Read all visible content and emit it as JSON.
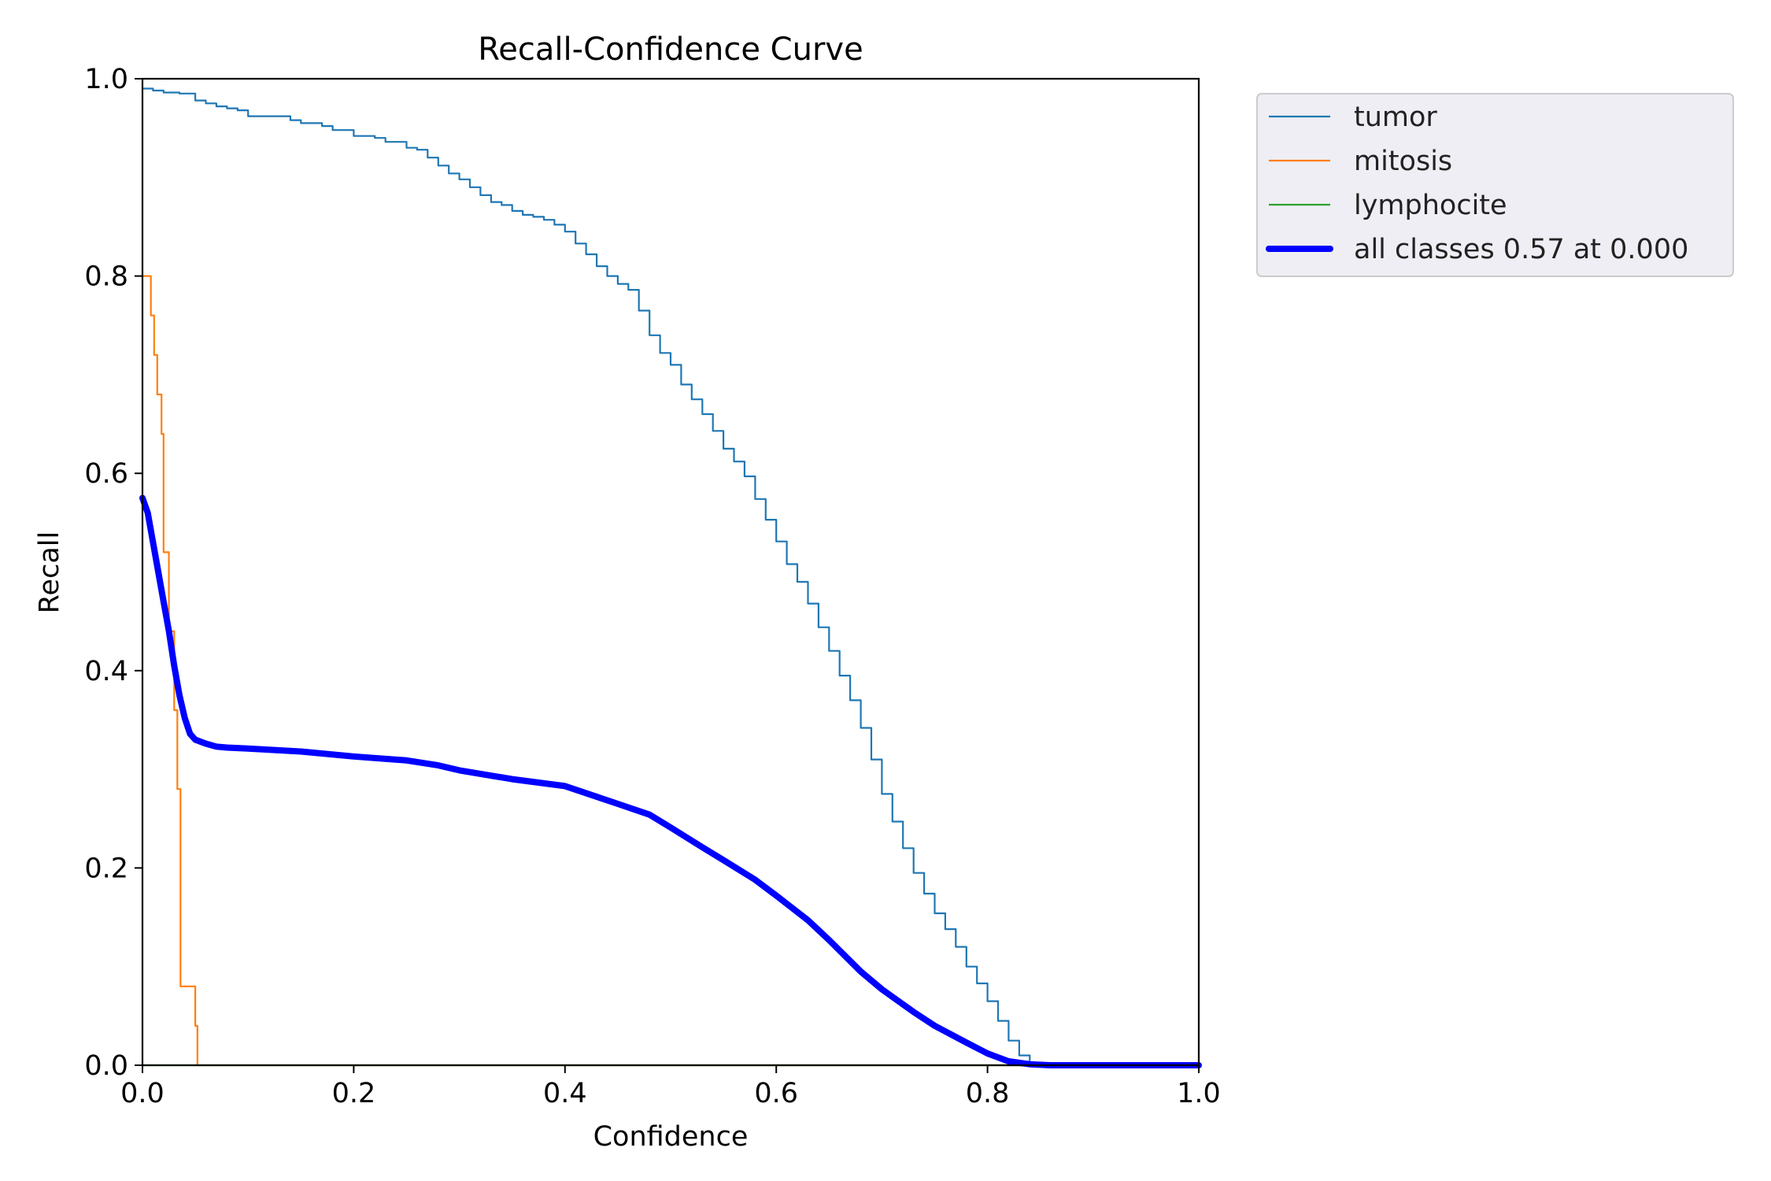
{
  "chart_data": {
    "type": "line",
    "title": "Recall-Confidence Curve",
    "xlabel": "Confidence",
    "ylabel": "Recall",
    "xlim": [
      0,
      1
    ],
    "ylim": [
      0,
      1
    ],
    "xticks": [
      "0.0",
      "0.2",
      "0.4",
      "0.6",
      "0.8",
      "1.0"
    ],
    "yticks": [
      "0.0",
      "0.2",
      "0.4",
      "0.6",
      "0.8",
      "1.0"
    ],
    "grid": false,
    "legend_position": "outside-top-right",
    "series": [
      {
        "name": "tumor",
        "color": "#1f77b4",
        "step": true,
        "x": [
          0.0,
          0.01,
          0.02,
          0.035,
          0.05,
          0.06,
          0.07,
          0.08,
          0.09,
          0.1,
          0.14,
          0.15,
          0.17,
          0.18,
          0.2,
          0.22,
          0.23,
          0.25,
          0.26,
          0.27,
          0.28,
          0.29,
          0.3,
          0.31,
          0.32,
          0.33,
          0.34,
          0.35,
          0.36,
          0.37,
          0.38,
          0.39,
          0.4,
          0.41,
          0.42,
          0.43,
          0.44,
          0.45,
          0.46,
          0.47,
          0.48,
          0.49,
          0.5,
          0.51,
          0.52,
          0.53,
          0.54,
          0.55,
          0.56,
          0.57,
          0.58,
          0.59,
          0.6,
          0.61,
          0.62,
          0.63,
          0.64,
          0.65,
          0.66,
          0.67,
          0.68,
          0.69,
          0.7,
          0.71,
          0.72,
          0.73,
          0.74,
          0.75,
          0.76,
          0.77,
          0.78,
          0.79,
          0.8,
          0.81,
          0.82,
          0.83,
          0.84,
          0.86,
          0.9,
          1.0
        ],
        "y": [
          0.99,
          0.988,
          0.986,
          0.985,
          0.978,
          0.975,
          0.972,
          0.97,
          0.968,
          0.962,
          0.958,
          0.955,
          0.952,
          0.948,
          0.942,
          0.94,
          0.936,
          0.93,
          0.928,
          0.92,
          0.912,
          0.904,
          0.898,
          0.89,
          0.882,
          0.875,
          0.872,
          0.866,
          0.862,
          0.86,
          0.857,
          0.852,
          0.845,
          0.833,
          0.822,
          0.81,
          0.8,
          0.792,
          0.786,
          0.765,
          0.74,
          0.722,
          0.71,
          0.69,
          0.675,
          0.66,
          0.643,
          0.625,
          0.612,
          0.597,
          0.574,
          0.553,
          0.531,
          0.508,
          0.49,
          0.468,
          0.444,
          0.42,
          0.395,
          0.37,
          0.342,
          0.31,
          0.275,
          0.247,
          0.22,
          0.195,
          0.174,
          0.154,
          0.138,
          0.12,
          0.1,
          0.083,
          0.065,
          0.045,
          0.025,
          0.01,
          0.002,
          0.0,
          0.0,
          0.0
        ]
      },
      {
        "name": "mitosis",
        "color": "#ff7f0e",
        "step": true,
        "x": [
          0.0,
          0.002,
          0.008,
          0.011,
          0.014,
          0.018,
          0.02,
          0.025,
          0.03,
          0.033,
          0.036,
          0.05,
          0.052,
          0.06,
          1.0
        ],
        "y": [
          0.8,
          0.8,
          0.76,
          0.72,
          0.68,
          0.64,
          0.52,
          0.44,
          0.36,
          0.28,
          0.08,
          0.04,
          0.0,
          0.0,
          0.0
        ]
      },
      {
        "name": "lymphocite",
        "color": "#2ca02c",
        "step": false,
        "x": [
          0.0,
          1.0
        ],
        "y": [
          0.0,
          0.0
        ]
      },
      {
        "name": "all classes 0.57 at 0.000",
        "color": "#0000ff",
        "step": false,
        "bold": true,
        "x": [
          0.0,
          0.005,
          0.01,
          0.015,
          0.02,
          0.025,
          0.03,
          0.035,
          0.04,
          0.045,
          0.05,
          0.055,
          0.06,
          0.07,
          0.08,
          0.1,
          0.15,
          0.2,
          0.25,
          0.28,
          0.3,
          0.35,
          0.4,
          0.45,
          0.48,
          0.5,
          0.53,
          0.55,
          0.58,
          0.6,
          0.63,
          0.65,
          0.68,
          0.7,
          0.73,
          0.75,
          0.78,
          0.8,
          0.82,
          0.84,
          0.86,
          0.9,
          1.0
        ],
        "y": [
          0.575,
          0.56,
          0.53,
          0.5,
          0.47,
          0.44,
          0.405,
          0.375,
          0.352,
          0.336,
          0.33,
          0.328,
          0.326,
          0.323,
          0.322,
          0.321,
          0.318,
          0.313,
          0.309,
          0.304,
          0.299,
          0.29,
          0.283,
          0.265,
          0.254,
          0.241,
          0.221,
          0.208,
          0.188,
          0.172,
          0.147,
          0.127,
          0.095,
          0.077,
          0.054,
          0.04,
          0.023,
          0.012,
          0.004,
          0.001,
          0.0,
          0.0,
          0.0
        ]
      }
    ]
  }
}
